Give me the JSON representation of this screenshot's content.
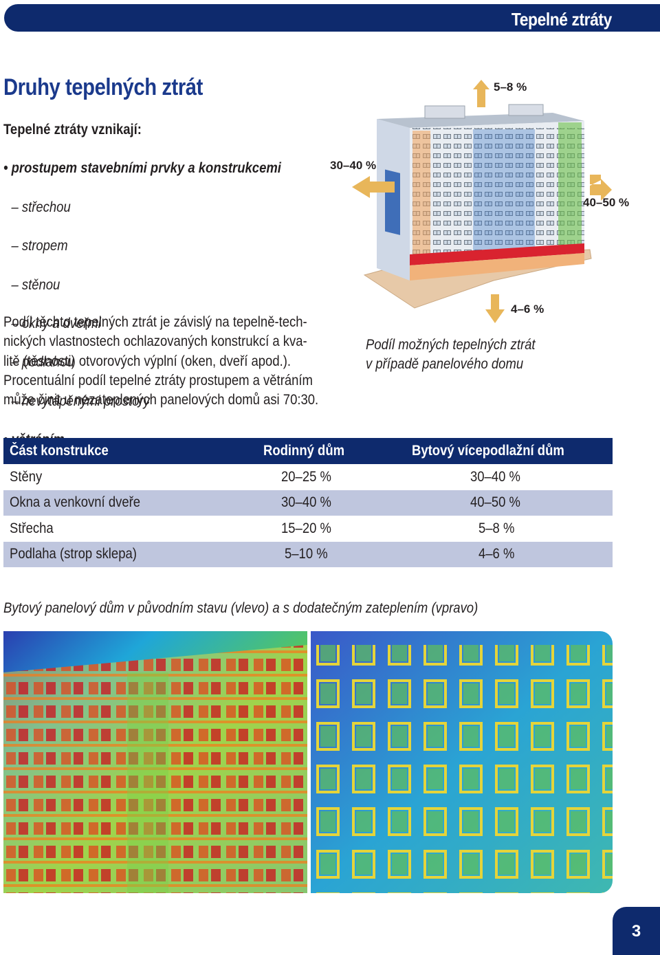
{
  "header": {
    "title": "Tepelné ztráty"
  },
  "page_title": "Druhy tepelných ztrát",
  "intro": {
    "lead": "Tepelné ztráty vznikají:",
    "bullet1": "• prostupem stavebními prvky a konstrukcemi",
    "sub_items": [
      "– střechou",
      "– stropem",
      "– stěnou",
      "– okny a dveřmi",
      "– podlahou",
      "– nevytápěnými prostory"
    ],
    "bullet2": "• větráním"
  },
  "body_lines": [
    "Podíl těchto tepelných ztrát je závislý na tepelně-tech-",
    "nických vlastnostech ochlazovaných konstrukcí a kva-",
    "litě (těsnosti) otvorových výplní (oken, dveří apod.).",
    "Procentuální podíl tepelné ztráty prostupem a větráním",
    "může činit u nezateplených panelových domů asi 70:30."
  ],
  "illustration": {
    "roof_label": "5–8 %",
    "left_wall_label": "30–40 %",
    "right_wall_label": "40–50 %",
    "floor_label": "4–6 %",
    "arrow_color": "#e8b65a"
  },
  "caption_lines": [
    "Podíl možných tepelných ztrát",
    "v případě panelového domu"
  ],
  "table": {
    "headers": [
      "Část konstrukce",
      "Rodinný dům",
      "Bytový vícepodlažní dům"
    ],
    "rows": [
      [
        "Stěny",
        "20–25 %",
        "30–40 %"
      ],
      [
        "Okna a venkovní dveře",
        "30–40 %",
        "40–50 %"
      ],
      [
        "Střecha",
        "15–20 %",
        "5–8 %"
      ],
      [
        "Podlaha (strop sklepa)",
        "5–10 %",
        "4–6 %"
      ]
    ]
  },
  "thermo_caption": "Bytový panelový dům v původním stavu (vlevo) a s dodatečným zateplením (vpravo)",
  "page_number": "3",
  "colors": {
    "navy": "#0e2a6d",
    "title_blue": "#1b3a8c",
    "row_alt": "#bfc6de"
  }
}
